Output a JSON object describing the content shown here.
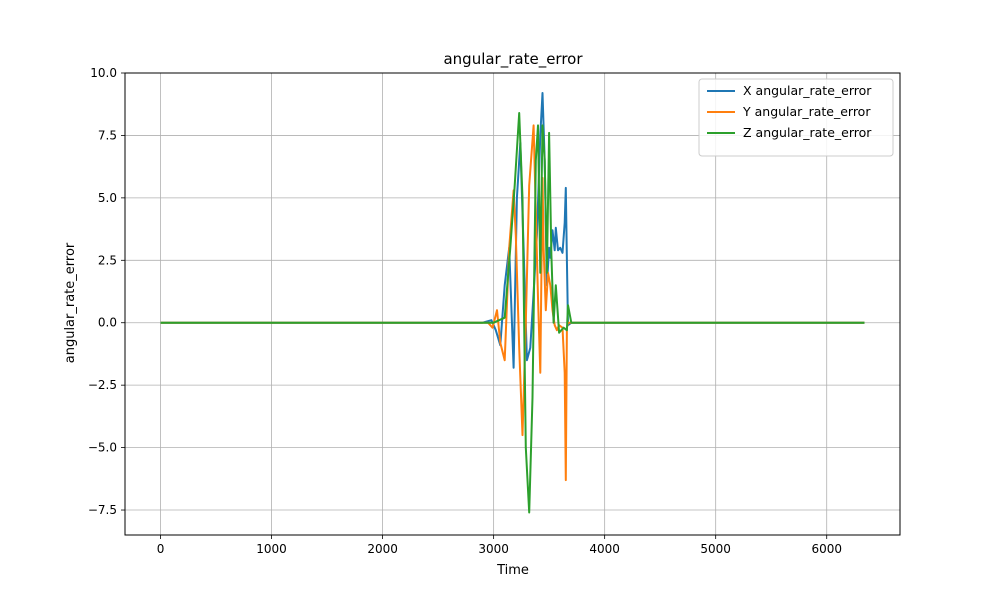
{
  "chart_data": {
    "type": "line",
    "title": "angular_rate_error",
    "xlabel": "Time",
    "ylabel": "angular_rate_error",
    "xlim": [
      -320,
      6660
    ],
    "ylim": [
      -8.5,
      10.0
    ],
    "xticks": [
      0,
      1000,
      2000,
      3000,
      4000,
      5000,
      6000
    ],
    "xtick_labels": [
      "0",
      "1000",
      "2000",
      "3000",
      "4000",
      "5000",
      "6000"
    ],
    "yticks": [
      -7.5,
      -5.0,
      -2.5,
      0.0,
      2.5,
      5.0,
      7.5,
      10.0
    ],
    "ytick_labels": [
      "−7.5",
      "−5.0",
      "−2.5",
      "0.0",
      "2.5",
      "5.0",
      "7.5",
      "10.0"
    ],
    "grid": true,
    "legend_position": "top-right",
    "series": [
      {
        "name": "X angular_rate_error",
        "color": "#1f77b4",
        "x": [
          0,
          2900,
          2980,
          3020,
          3060,
          3100,
          3140,
          3180,
          3210,
          3240,
          3270,
          3300,
          3330,
          3360,
          3390,
          3420,
          3440,
          3460,
          3480,
          3500,
          3510,
          3530,
          3550,
          3560,
          3580,
          3600,
          3620,
          3640,
          3650,
          3660,
          3670,
          3700,
          6340
        ],
        "y": [
          0,
          0,
          0.1,
          -0.3,
          -0.9,
          1.5,
          3.0,
          -1.8,
          5.0,
          7.2,
          3.0,
          -1.5,
          -1.0,
          1.2,
          3.5,
          7.5,
          9.2,
          6.5,
          1.5,
          3.0,
          2.6,
          3.7,
          2.9,
          3.8,
          2.9,
          3.0,
          2.8,
          4.0,
          5.4,
          2.5,
          -0.1,
          0,
          0
        ]
      },
      {
        "name": "Y angular_rate_error",
        "color": "#ff7f0e",
        "x": [
          0,
          2950,
          2990,
          3030,
          3060,
          3100,
          3140,
          3180,
          3200,
          3230,
          3260,
          3290,
          3320,
          3360,
          3400,
          3420,
          3440,
          3450,
          3470,
          3490,
          3510,
          3530,
          3550,
          3570,
          3590,
          3620,
          3640,
          3650,
          3660,
          3670,
          3700,
          6340
        ],
        "y": [
          0,
          0,
          -0.2,
          0.5,
          -0.8,
          -1.5,
          3.0,
          5.3,
          3.5,
          -1.0,
          -4.5,
          0,
          5.5,
          7.9,
          1.0,
          -2.0,
          5.8,
          3.0,
          0.5,
          2.0,
          1.5,
          0.5,
          -0.1,
          -0.3,
          -0.1,
          -0.2,
          -2.0,
          -6.3,
          -0.2,
          0,
          0,
          0
        ]
      },
      {
        "name": "Z angular_rate_error",
        "color": "#2ca02c",
        "x": [
          0,
          3000,
          3100,
          3150,
          3190,
          3230,
          3260,
          3290,
          3320,
          3350,
          3380,
          3400,
          3420,
          3440,
          3460,
          3480,
          3500,
          3520,
          3540,
          3560,
          3590,
          3630,
          3660,
          3670,
          3700,
          6340
        ],
        "y": [
          0,
          0,
          0.2,
          3.0,
          5.5,
          8.4,
          5.0,
          -5.0,
          -7.6,
          -3.0,
          6.5,
          7.9,
          2.0,
          7.9,
          6.5,
          2.0,
          7.6,
          2.7,
          0,
          1.5,
          -0.4,
          -0.2,
          -0.3,
          0.7,
          0,
          0
        ]
      }
    ]
  }
}
